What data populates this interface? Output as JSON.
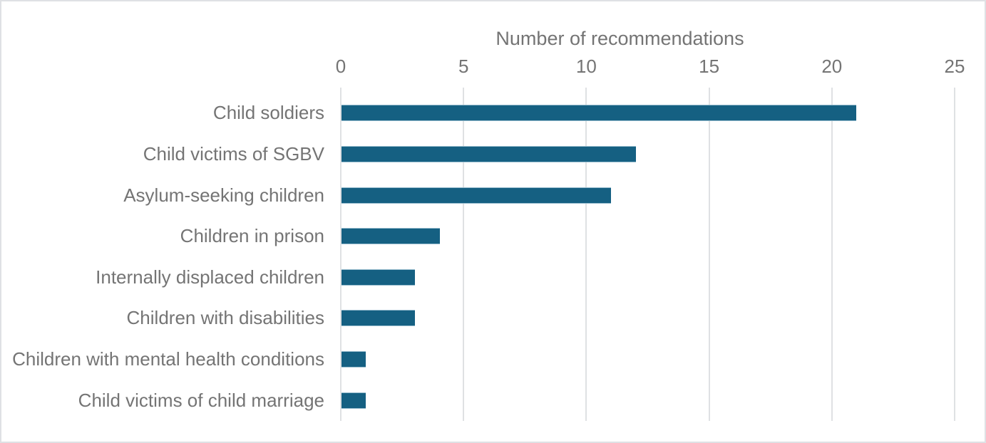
{
  "frame": {
    "background": "#FFFFFF",
    "border_color": "#DFE1E4"
  },
  "chart_data": {
    "type": "bar",
    "orientation": "horizontal",
    "title": "Number of recommendations",
    "categories": [
      "Child soldiers",
      "Child victims of SGBV",
      "Asylum-seeking children",
      "Children in prison",
      "Internally displaced children",
      "Children with disabilities",
      "Children with mental health conditions",
      "Child victims of child marriage"
    ],
    "values": [
      21,
      12,
      11,
      4,
      3,
      3,
      1,
      1
    ],
    "xlim": [
      0,
      25
    ],
    "xticks": [
      0,
      5,
      10,
      15,
      20,
      25
    ],
    "x_axis_position": "top",
    "grid": "vertical",
    "legend": "none",
    "colors": {
      "bar": "#156082",
      "gridline": "#DFE1E3",
      "axis_text": "#747474",
      "frame_border": "#DFE1E4"
    }
  }
}
